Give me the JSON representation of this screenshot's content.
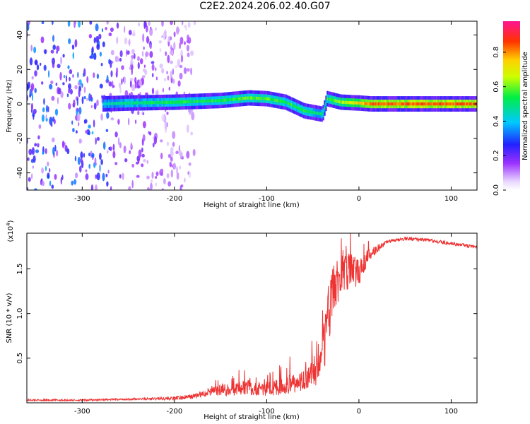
{
  "title": "C2E2.2024.206.02.40.G07",
  "chart_data": [
    {
      "type": "heatmap",
      "name": "spectrogram",
      "xlabel": "Height of straight line (km)",
      "ylabel": "Frequency (Hz)",
      "xlim": [
        -360,
        128
      ],
      "ylim": [
        -50,
        48
      ],
      "x_ticks": [
        -300,
        -200,
        -100,
        0,
        100
      ],
      "x_tick_labels": [
        "-300",
        "-200",
        "-100",
        "0",
        "100"
      ],
      "y_ticks": [
        -40,
        -20,
        0,
        20,
        40
      ],
      "y_tick_labels": [
        "-40",
        "-20",
        "0",
        "20",
        "40"
      ],
      "grid": false,
      "colorbar": {
        "label": "Normalized spectral amplitude",
        "range": [
          0,
          0.98
        ],
        "ticks": [
          0.0,
          0.2,
          0.4,
          0.6,
          0.8
        ],
        "tick_labels": [
          "0.0",
          "0.2",
          "0.4",
          "0.6",
          "0.8"
        ],
        "colormap": "rainbow (white-purple-blue-cyan-green-yellow-orange-red-magenta)"
      },
      "features": {
        "noise_region_x": [
          -360,
          -178
        ],
        "noise_amplitude": 0.3,
        "ridge": [
          {
            "x": -278,
            "f": 0.0,
            "amp": 0.45
          },
          {
            "x": -250,
            "f": 0.5,
            "amp": 0.5
          },
          {
            "x": -200,
            "f": 1.0,
            "amp": 0.55
          },
          {
            "x": -150,
            "f": 2.0,
            "amp": 0.55
          },
          {
            "x": -120,
            "f": 3.5,
            "amp": 0.6
          },
          {
            "x": -100,
            "f": 3.0,
            "amp": 0.6
          },
          {
            "x": -80,
            "f": 1.0,
            "amp": 0.55
          },
          {
            "x": -60,
            "f": -4.0,
            "amp": 0.55
          },
          {
            "x": -40,
            "f": -6.0,
            "amp": 0.5
          },
          {
            "x": -35,
            "f": 3.0,
            "amp": 0.55
          },
          {
            "x": -20,
            "f": 1.0,
            "amp": 0.65
          },
          {
            "x": 0,
            "f": 0.5,
            "amp": 0.75
          },
          {
            "x": 12,
            "f": 0.0,
            "amp": 0.85
          },
          {
            "x": 128,
            "f": 0.0,
            "amp": 0.85
          }
        ]
      }
    },
    {
      "type": "line",
      "name": "snr",
      "xlabel": "Height of straight line (km)",
      "ylabel": "SNR (10 * v/v)",
      "y_multiplier_label": "(x10",
      "y_multiplier_exp": "4",
      "xlim": [
        -360,
        128
      ],
      "ylim": [
        0,
        1.9
      ],
      "x_ticks": [
        -300,
        -200,
        -100,
        0,
        100
      ],
      "x_tick_labels": [
        "-300",
        "-200",
        "-100",
        "0",
        "100"
      ],
      "y_ticks": [
        0.5,
        1.0,
        1.5
      ],
      "y_tick_labels": [
        "0.5",
        "1.0",
        "1.5"
      ],
      "grid": false,
      "series": [
        {
          "color": "#ee3333",
          "x": [
            -360,
            -300,
            -250,
            -200,
            -180,
            -160,
            -140,
            -120,
            -100,
            -80,
            -60,
            -45,
            -35,
            -28,
            -20,
            -10,
            0,
            10,
            30,
            50,
            70,
            90,
            110,
            128
          ],
          "y": [
            0.03,
            0.03,
            0.04,
            0.05,
            0.07,
            0.13,
            0.15,
            0.17,
            0.16,
            0.19,
            0.25,
            0.4,
            0.8,
            1.3,
            1.4,
            1.5,
            1.45,
            1.65,
            1.8,
            1.84,
            1.83,
            1.8,
            1.77,
            1.74
          ],
          "noise": [
            0.01,
            0.01,
            0.01,
            0.02,
            0.03,
            0.05,
            0.07,
            0.08,
            0.08,
            0.1,
            0.12,
            0.2,
            0.35,
            0.3,
            0.25,
            0.2,
            0.15,
            0.07,
            0.02,
            0.02,
            0.02,
            0.02,
            0.02,
            0.02
          ]
        }
      ]
    }
  ]
}
